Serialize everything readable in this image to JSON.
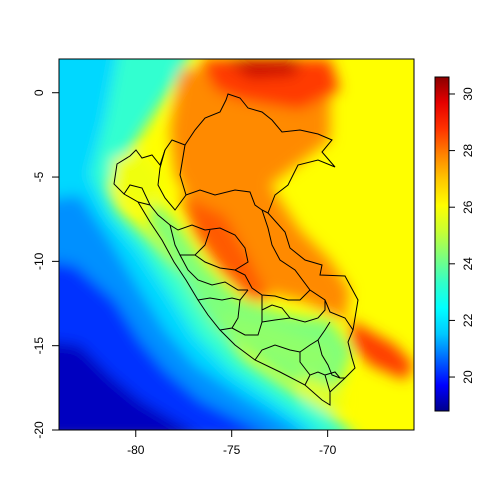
{
  "chart_data": {
    "type": "heatmap",
    "title": "",
    "xlabel": "",
    "ylabel": "",
    "xlim": [
      -84,
      -65.5
    ],
    "ylim": [
      -20,
      2
    ],
    "x_ticks": [
      {
        "value": -80,
        "label": "-80"
      },
      {
        "value": -75,
        "label": "-75"
      },
      {
        "value": -70,
        "label": "-70"
      }
    ],
    "y_ticks": [
      {
        "value": 0,
        "label": "0"
      },
      {
        "value": -5,
        "label": "-5"
      },
      {
        "value": -10,
        "label": "-10"
      },
      {
        "value": -15,
        "label": "-15"
      },
      {
        "value": -20,
        "label": "-20"
      }
    ],
    "colorbar": {
      "min": 18.8,
      "max": 30.6,
      "ticks": [
        {
          "value": 20,
          "label": "20"
        },
        {
          "value": 22,
          "label": "22"
        },
        {
          "value": 24,
          "label": "24"
        },
        {
          "value": 26,
          "label": "26"
        },
        {
          "value": 28,
          "label": "28"
        },
        {
          "value": 30,
          "label": "30"
        }
      ],
      "colors": [
        "#00008b",
        "#0000ff",
        "#0064ff",
        "#00c8ff",
        "#00ffff",
        "#32ffc8",
        "#7dff7d",
        "#c8ff32",
        "#ffff00",
        "#ffc800",
        "#ff8200",
        "#ff3200",
        "#e60000",
        "#8b0000"
      ]
    },
    "grid": false,
    "legend": "right"
  }
}
